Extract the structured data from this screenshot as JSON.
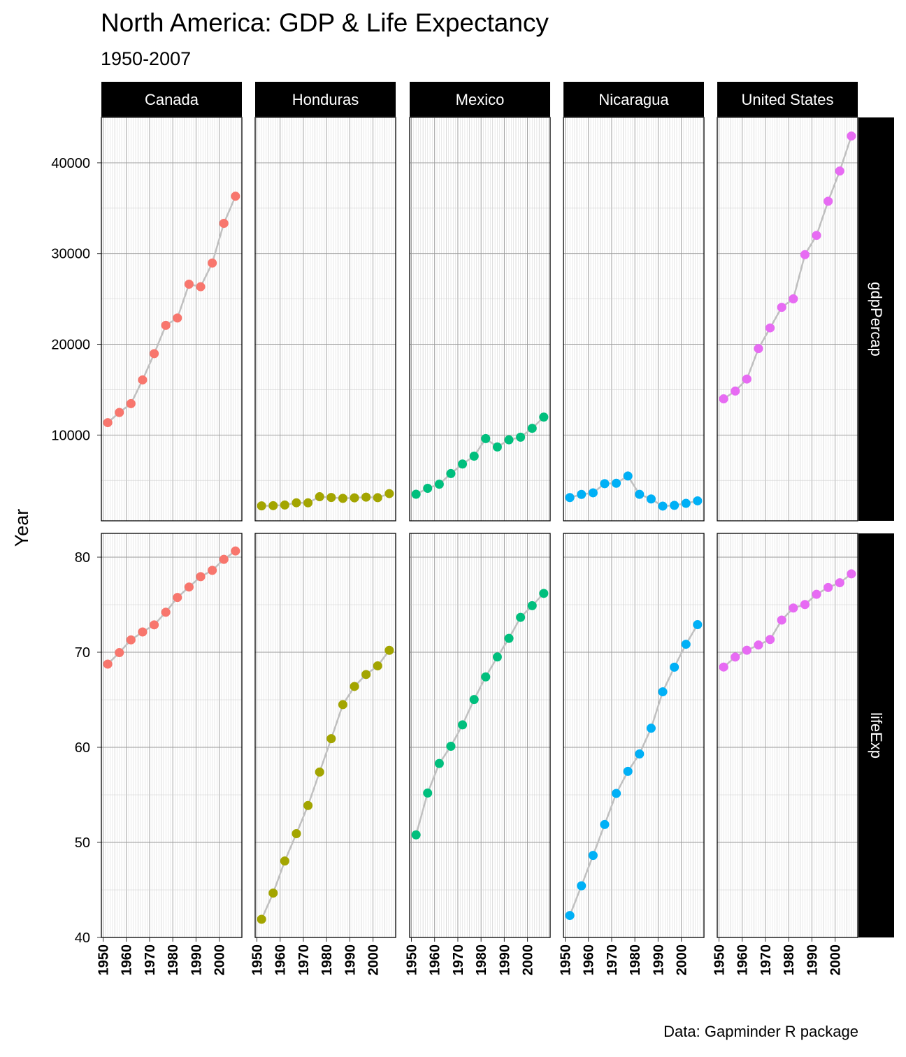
{
  "chart_data": {
    "type": "scatter",
    "title": "North America: GDP & Life Expectancy",
    "subtitle": "1950-2007",
    "ylabel": "Year",
    "caption": "Data: Gapminder R package",
    "facet_cols": [
      "Canada",
      "Honduras",
      "Mexico",
      "Nicaragua",
      "United States"
    ],
    "facet_rows": [
      "gdpPercap",
      "lifeExp"
    ],
    "x": [
      1952,
      1957,
      1962,
      1967,
      1972,
      1977,
      1982,
      1987,
      1992,
      1997,
      2002,
      2007
    ],
    "x_ticks": [
      1950,
      1960,
      1970,
      1980,
      1990,
      2000
    ],
    "xlim": [
      1949.25,
      2009.75
    ],
    "panels": {
      "gdpPercap": {
        "ylim": [
          550,
          45000
        ],
        "y_ticks": [
          10000,
          20000,
          30000,
          40000
        ],
        "series": [
          {
            "name": "Canada",
            "values": [
              11367,
              12490,
              13462,
              16077,
              18971,
              22091,
              22899,
              26627,
              26343,
              28955,
              33329,
              36319
            ]
          },
          {
            "name": "Honduras",
            "values": [
              2195,
              2220,
              2291,
              2538,
              2529,
              3203,
              3122,
              3024,
              3082,
              3160,
              3099,
              3548
            ]
          },
          {
            "name": "Mexico",
            "values": [
              3478,
              4132,
              4582,
              5755,
              6809,
              7675,
              9611,
              8688,
              9472,
              9767,
              10742,
              11978
            ]
          },
          {
            "name": "Nicaragua",
            "values": [
              3112,
              3457,
              3635,
              4644,
              4688,
              5487,
              3470,
              2956,
              2171,
              2253,
              2475,
              2749
            ]
          },
          {
            "name": "United States",
            "values": [
              13990,
              14847,
              16173,
              19530,
              21806,
              24073,
              25010,
              29884,
              32004,
              35767,
              39097,
              42952
            ]
          }
        ]
      },
      "lifeExp": {
        "ylim": [
          40,
          82.5
        ],
        "y_ticks": [
          40,
          50,
          60,
          70,
          80
        ],
        "series": [
          {
            "name": "Canada",
            "values": [
              68.75,
              69.96,
              71.3,
              72.13,
              72.88,
              74.21,
              75.76,
              76.86,
              77.95,
              78.61,
              79.77,
              80.65
            ]
          },
          {
            "name": "Honduras",
            "values": [
              41.91,
              44.67,
              48.04,
              50.92,
              53.88,
              57.4,
              60.91,
              64.49,
              66.4,
              67.66,
              68.57,
              70.2
            ]
          },
          {
            "name": "Mexico",
            "values": [
              50.79,
              55.19,
              58.3,
              60.11,
              62.36,
              65.03,
              67.41,
              69.5,
              71.46,
              73.67,
              74.9,
              76.19
            ]
          },
          {
            "name": "Nicaragua",
            "values": [
              42.31,
              45.43,
              48.63,
              51.88,
              55.15,
              57.47,
              59.3,
              62.01,
              65.84,
              68.43,
              70.84,
              72.9
            ]
          },
          {
            "name": "United States",
            "values": [
              68.44,
              69.49,
              70.21,
              70.76,
              71.34,
              73.38,
              74.65,
              75.02,
              76.09,
              76.81,
              77.31,
              78.24
            ]
          }
        ]
      }
    },
    "colors": [
      "#F8766D",
      "#A3A500",
      "#00BF7D",
      "#00B0F6",
      "#E76BF3"
    ],
    "line_color": "#c0c0c0",
    "strip_fill": "#000000",
    "grid": true
  }
}
